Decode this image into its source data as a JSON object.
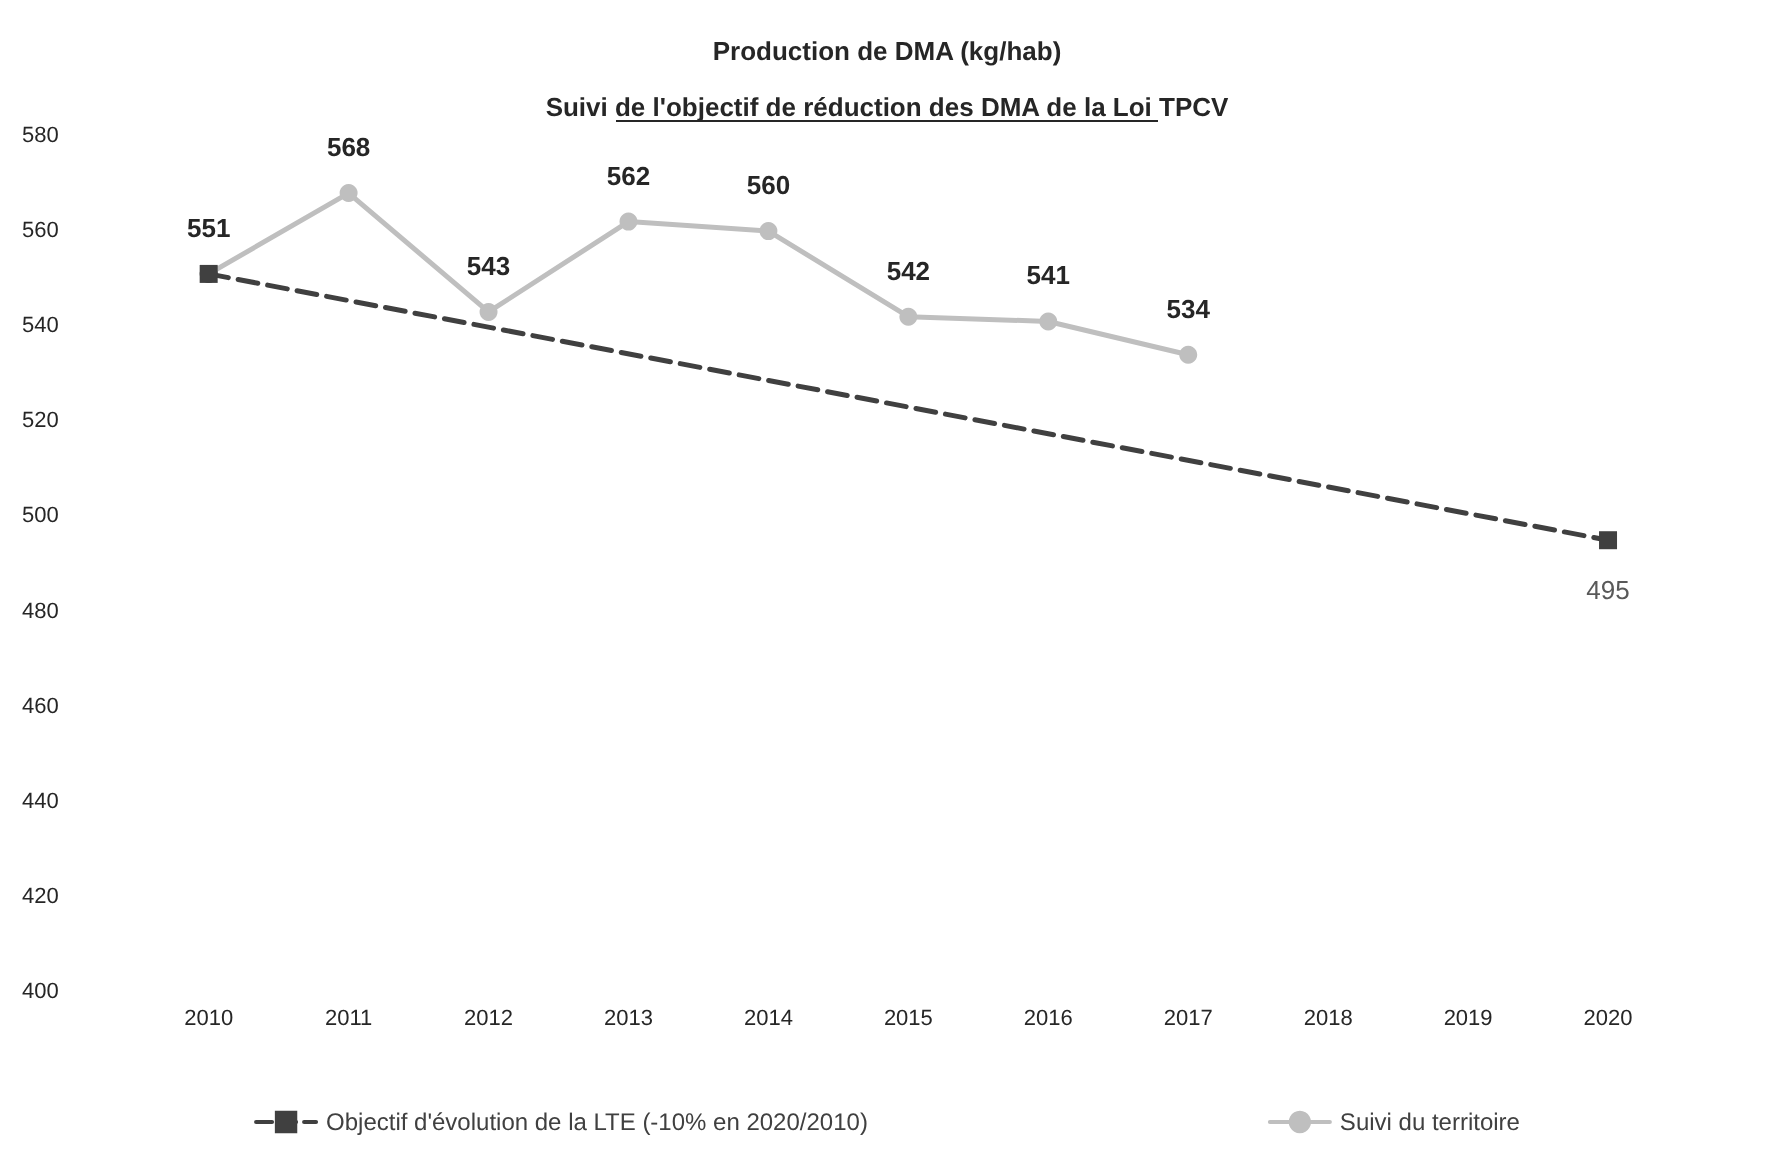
{
  "chart_data": {
    "type": "line",
    "title": "Production de DMA (kg/hab)",
    "subtitle": "Suivi de l'objectif de réduction des DMA de la Loi TPCV",
    "categories": [
      "2010",
      "2011",
      "2012",
      "2013",
      "2014",
      "2015",
      "2016",
      "2017",
      "2018",
      "2019",
      "2020"
    ],
    "series": [
      {
        "name": "Objectif d'évolution de la LTE (-10% en 2020/2010)",
        "color": "#404040",
        "line_style": "dashed",
        "marker": "square",
        "values": [
          551,
          null,
          null,
          null,
          null,
          null,
          null,
          null,
          null,
          null,
          495
        ],
        "value_labels": [
          null,
          null,
          null,
          null,
          null,
          null,
          null,
          null,
          null,
          null,
          "495"
        ]
      },
      {
        "name": "Suivi du territoire",
        "color": "#bfbfbf",
        "colors": [
          "#404040",
          "#bfbfbf",
          "#bfbfbf",
          "#bfbfbf",
          "#bfbfbf",
          "#bfbfbf",
          "#bfbfbf",
          "#bfbfbf",
          null,
          null,
          null
        ],
        "line_style": "solid",
        "marker": "circle",
        "values": [
          551,
          568,
          543,
          562,
          560,
          542,
          541,
          534,
          null,
          null,
          null
        ],
        "value_labels": [
          "551",
          "568",
          "543",
          "562",
          "560",
          "542",
          "541",
          "534",
          null,
          null,
          null
        ]
      }
    ],
    "ylim": [
      400,
      580
    ],
    "yticks": [
      400,
      420,
      440,
      460,
      480,
      500,
      520,
      540,
      560,
      580
    ],
    "grid": false,
    "legend": "bottom"
  }
}
